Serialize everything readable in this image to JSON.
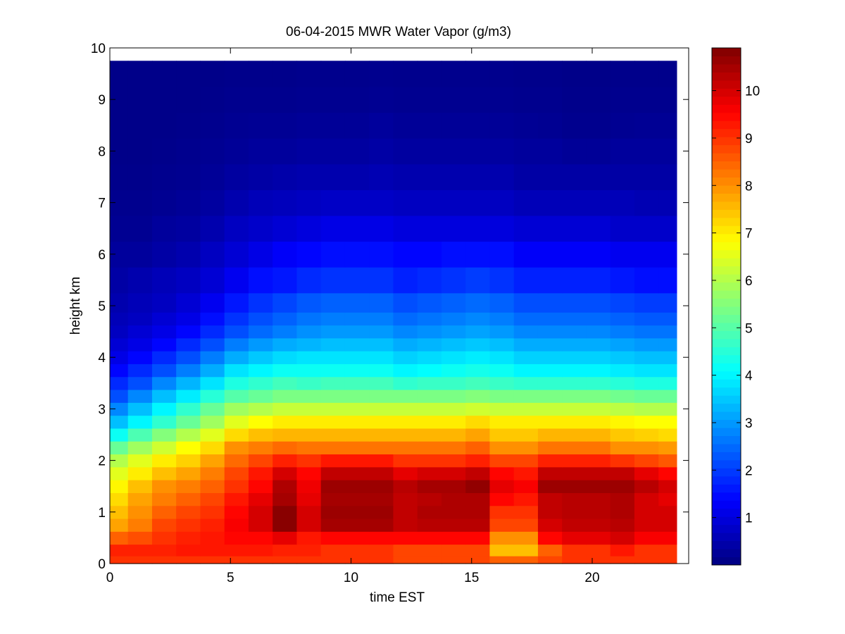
{
  "chart_data": {
    "type": "heatmap",
    "title": "06-04-2015 MWR Water Vapor (g/m3)",
    "xlabel": "time EST",
    "ylabel": "height km",
    "xlim": [
      0,
      24
    ],
    "ylim": [
      0,
      10
    ],
    "x_ticks": [
      0,
      5,
      10,
      15,
      20
    ],
    "y_ticks": [
      0,
      1,
      2,
      3,
      4,
      5,
      6,
      7,
      8,
      9,
      10
    ],
    "colorbar": {
      "colormap": "jet",
      "range": [
        0,
        10.9
      ],
      "ticks": [
        1,
        2,
        3,
        4,
        5,
        6,
        7,
        8,
        9,
        10
      ]
    },
    "x": [
      0.25,
      1.25,
      2.25,
      3.25,
      4.25,
      5.25,
      6.25,
      7.25,
      8.25,
      9.25,
      10.25,
      11.25,
      12.25,
      13.25,
      14.25,
      15.25,
      16.25,
      17.25,
      18.25,
      19.25,
      20.25,
      21.25,
      22.25,
      23.25
    ],
    "y": [
      0.05,
      0.25,
      0.5,
      0.75,
      1.0,
      1.25,
      1.5,
      1.75,
      2.0,
      2.25,
      2.5,
      2.75,
      3.0,
      3.25,
      3.5,
      3.75,
      4.0,
      4.25,
      4.5,
      4.75,
      5.0,
      5.5,
      6.0,
      6.5,
      7.0,
      7.5,
      8.0,
      8.5,
      9.0,
      9.5
    ],
    "values": [
      [
        9.0,
        9.0,
        9.0,
        9.0,
        9.0,
        9.0,
        9.0,
        9.0,
        9.0,
        9.0,
        9.0,
        9.0,
        8.8,
        8.8,
        8.8,
        8.8,
        8.5,
        8.5,
        8.8,
        9.0,
        9.0,
        9.0,
        9.0,
        9.0
      ],
      [
        9.2,
        9.2,
        9.2,
        9.3,
        9.3,
        9.3,
        9.3,
        9.2,
        9.2,
        9.0,
        9.0,
        9.0,
        8.8,
        8.8,
        8.8,
        8.8,
        7.5,
        7.5,
        8.5,
        9.0,
        9.0,
        9.3,
        9.0,
        9.0
      ],
      [
        8.5,
        8.7,
        9.0,
        9.2,
        9.3,
        9.5,
        9.5,
        9.8,
        9.3,
        9.5,
        9.5,
        9.5,
        9.5,
        9.5,
        9.5,
        9.5,
        8.0,
        8.0,
        9.5,
        9.8,
        9.8,
        10.0,
        9.6,
        9.6
      ],
      [
        7.8,
        8.2,
        8.8,
        9.0,
        9.2,
        9.6,
        10.0,
        10.8,
        10.0,
        10.5,
        10.5,
        10.5,
        10.2,
        10.3,
        10.3,
        10.3,
        8.8,
        8.8,
        10.0,
        10.2,
        10.2,
        10.3,
        10.0,
        10.0
      ],
      [
        7.5,
        8.0,
        8.5,
        8.8,
        9.0,
        9.5,
        10.0,
        10.8,
        10.0,
        10.6,
        10.6,
        10.6,
        10.2,
        10.4,
        10.4,
        10.4,
        9.0,
        9.0,
        10.2,
        10.3,
        10.3,
        10.4,
        10.0,
        10.0
      ],
      [
        7.2,
        7.8,
        8.2,
        8.5,
        8.8,
        9.3,
        9.8,
        10.5,
        9.8,
        10.5,
        10.5,
        10.5,
        10.2,
        10.3,
        10.4,
        10.4,
        9.5,
        9.3,
        10.2,
        10.3,
        10.3,
        10.4,
        10.0,
        9.8
      ],
      [
        6.9,
        7.5,
        8.0,
        8.2,
        8.5,
        9.0,
        9.5,
        10.4,
        9.7,
        10.6,
        10.6,
        10.6,
        10.3,
        10.5,
        10.5,
        10.7,
        9.8,
        9.6,
        10.6,
        10.6,
        10.6,
        10.6,
        10.3,
        10.0
      ],
      [
        6.5,
        7.0,
        7.5,
        7.8,
        8.2,
        8.8,
        9.3,
        10.0,
        9.5,
        10.2,
        10.2,
        10.2,
        9.8,
        10.0,
        10.0,
        10.2,
        9.5,
        9.3,
        10.2,
        10.2,
        10.2,
        10.2,
        9.8,
        9.5
      ],
      [
        6.0,
        6.5,
        7.0,
        7.3,
        7.8,
        8.4,
        8.8,
        9.2,
        9.0,
        9.3,
        9.3,
        9.3,
        9.0,
        9.0,
        9.0,
        9.2,
        8.8,
        8.8,
        9.2,
        9.2,
        9.2,
        9.0,
        8.8,
        8.6
      ],
      [
        5.2,
        5.8,
        6.3,
        6.8,
        7.2,
        8.0,
        8.2,
        8.4,
        8.3,
        8.3,
        8.3,
        8.3,
        8.3,
        8.3,
        8.3,
        8.5,
        8.0,
        8.0,
        8.3,
        8.3,
        8.3,
        8.0,
        8.0,
        7.9
      ],
      [
        4.2,
        4.9,
        5.5,
        6.0,
        6.5,
        7.2,
        7.5,
        7.6,
        7.6,
        7.6,
        7.6,
        7.6,
        7.6,
        7.6,
        7.6,
        7.8,
        7.4,
        7.4,
        7.6,
        7.6,
        7.6,
        7.4,
        7.3,
        7.2
      ],
      [
        3.4,
        4.0,
        4.6,
        5.2,
        5.8,
        6.5,
        6.8,
        7.0,
        7.0,
        7.0,
        7.0,
        7.0,
        7.0,
        7.0,
        7.0,
        7.2,
        7.0,
        7.0,
        7.0,
        7.0,
        7.0,
        6.9,
        6.8,
        6.8
      ],
      [
        2.8,
        3.4,
        4.0,
        4.6,
        5.2,
        5.8,
        6.0,
        6.2,
        6.2,
        6.2,
        6.2,
        6.2,
        6.2,
        6.2,
        6.2,
        6.3,
        6.2,
        6.2,
        6.2,
        6.2,
        6.2,
        6.1,
        6.0,
        6.0
      ],
      [
        2.2,
        2.8,
        3.4,
        3.9,
        4.5,
        5.0,
        5.2,
        5.4,
        5.4,
        5.4,
        5.4,
        5.4,
        5.4,
        5.4,
        5.4,
        5.5,
        5.4,
        5.4,
        5.4,
        5.4,
        5.4,
        5.3,
        5.2,
        5.2
      ],
      [
        1.8,
        2.2,
        2.8,
        3.3,
        3.8,
        4.4,
        4.6,
        4.8,
        4.7,
        4.8,
        4.8,
        4.8,
        4.6,
        4.7,
        4.7,
        4.8,
        4.7,
        4.6,
        4.6,
        4.6,
        4.6,
        4.5,
        4.4,
        4.4
      ],
      [
        1.4,
        1.8,
        2.2,
        2.7,
        3.2,
        3.8,
        4.0,
        4.2,
        4.2,
        4.2,
        4.2,
        4.2,
        4.0,
        4.1,
        4.2,
        4.3,
        4.2,
        4.0,
        4.0,
        4.0,
        4.0,
        3.9,
        3.8,
        3.8
      ],
      [
        1.1,
        1.4,
        1.8,
        2.2,
        2.7,
        3.2,
        3.5,
        3.7,
        3.8,
        3.8,
        3.8,
        3.8,
        3.6,
        3.7,
        3.8,
        3.9,
        3.8,
        3.6,
        3.6,
        3.6,
        3.6,
        3.5,
        3.4,
        3.4
      ],
      [
        0.9,
        1.1,
        1.4,
        1.8,
        2.2,
        2.7,
        3.0,
        3.2,
        3.3,
        3.4,
        3.4,
        3.4,
        3.2,
        3.3,
        3.4,
        3.5,
        3.4,
        3.2,
        3.2,
        3.2,
        3.2,
        3.1,
        3.0,
        3.0
      ],
      [
        0.7,
        0.9,
        1.1,
        1.4,
        1.8,
        2.2,
        2.5,
        2.7,
        2.9,
        3.0,
        3.0,
        3.0,
        2.8,
        2.9,
        3.0,
        3.1,
        3.0,
        2.8,
        2.8,
        2.8,
        2.8,
        2.7,
        2.6,
        2.6
      ],
      [
        0.6,
        0.7,
        0.9,
        1.1,
        1.5,
        1.9,
        2.2,
        2.4,
        2.6,
        2.7,
        2.7,
        2.7,
        2.5,
        2.6,
        2.7,
        2.8,
        2.7,
        2.5,
        2.5,
        2.5,
        2.5,
        2.4,
        2.3,
        2.3
      ],
      [
        0.5,
        0.6,
        0.7,
        0.9,
        1.2,
        1.6,
        1.9,
        2.1,
        2.3,
        2.4,
        2.4,
        2.4,
        2.2,
        2.3,
        2.4,
        2.5,
        2.4,
        2.2,
        2.2,
        2.2,
        2.2,
        2.1,
        2.0,
        2.0
      ],
      [
        0.4,
        0.5,
        0.6,
        0.7,
        0.9,
        1.2,
        1.5,
        1.6,
        1.8,
        1.9,
        1.9,
        1.9,
        1.7,
        1.8,
        1.9,
        2.0,
        1.9,
        1.7,
        1.7,
        1.7,
        1.7,
        1.6,
        1.5,
        1.5
      ],
      [
        0.3,
        0.3,
        0.4,
        0.5,
        0.7,
        0.9,
        1.1,
        1.3,
        1.4,
        1.5,
        1.5,
        1.5,
        1.4,
        1.4,
        1.5,
        1.5,
        1.5,
        1.3,
        1.3,
        1.3,
        1.3,
        1.2,
        1.2,
        1.2
      ],
      [
        0.2,
        0.2,
        0.3,
        0.35,
        0.5,
        0.7,
        0.8,
        0.9,
        1.0,
        1.1,
        1.1,
        1.1,
        1.0,
        1.0,
        1.0,
        1.0,
        1.0,
        0.9,
        0.9,
        0.9,
        0.9,
        0.8,
        0.8,
        0.8
      ],
      [
        0.15,
        0.15,
        0.2,
        0.25,
        0.35,
        0.5,
        0.6,
        0.65,
        0.7,
        0.75,
        0.75,
        0.75,
        0.7,
        0.7,
        0.7,
        0.7,
        0.7,
        0.6,
        0.6,
        0.6,
        0.6,
        0.6,
        0.55,
        0.55
      ],
      [
        0.12,
        0.12,
        0.15,
        0.18,
        0.25,
        0.35,
        0.4,
        0.45,
        0.5,
        0.5,
        0.5,
        0.55,
        0.5,
        0.5,
        0.5,
        0.5,
        0.5,
        0.4,
        0.4,
        0.4,
        0.4,
        0.4,
        0.4,
        0.4
      ],
      [
        0.1,
        0.1,
        0.12,
        0.15,
        0.2,
        0.25,
        0.3,
        0.3,
        0.35,
        0.35,
        0.35,
        0.4,
        0.35,
        0.35,
        0.35,
        0.35,
        0.35,
        0.3,
        0.3,
        0.25,
        0.25,
        0.3,
        0.3,
        0.3
      ],
      [
        0.1,
        0.1,
        0.1,
        0.12,
        0.15,
        0.2,
        0.22,
        0.22,
        0.25,
        0.25,
        0.25,
        0.3,
        0.25,
        0.25,
        0.25,
        0.25,
        0.25,
        0.22,
        0.2,
        0.15,
        0.15,
        0.2,
        0.22,
        0.22
      ],
      [
        0.1,
        0.1,
        0.1,
        0.1,
        0.12,
        0.15,
        0.15,
        0.15,
        0.18,
        0.18,
        0.18,
        0.2,
        0.18,
        0.18,
        0.18,
        0.18,
        0.18,
        0.15,
        0.15,
        0.12,
        0.12,
        0.15,
        0.15,
        0.15
      ],
      [
        0.1,
        0.1,
        0.1,
        0.1,
        0.1,
        0.12,
        0.12,
        0.12,
        0.14,
        0.14,
        0.14,
        0.15,
        0.14,
        0.14,
        0.14,
        0.14,
        0.14,
        0.12,
        0.12,
        0.1,
        0.1,
        0.12,
        0.12,
        0.12
      ]
    ]
  }
}
